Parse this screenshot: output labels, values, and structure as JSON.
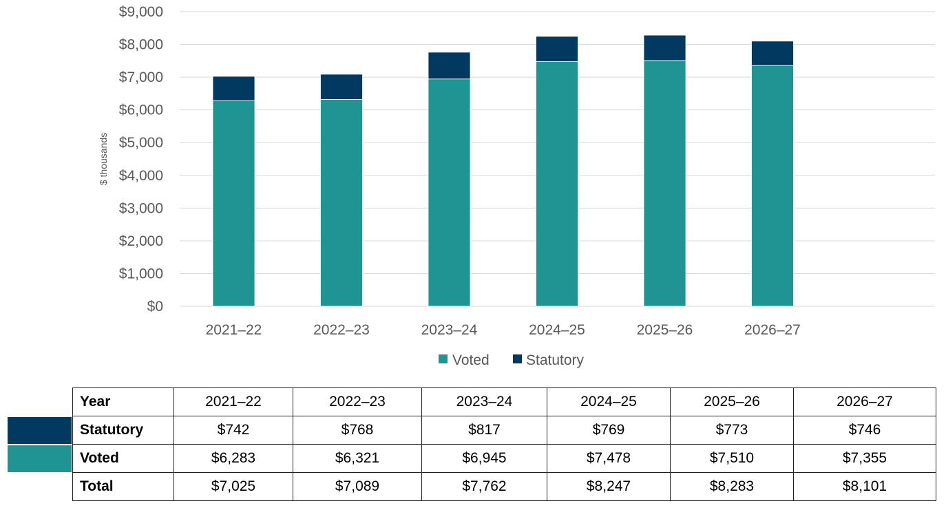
{
  "chart_data": {
    "type": "bar",
    "stacked": true,
    "title": "",
    "xlabel": "",
    "ylabel": "$ thousands",
    "ylim": [
      0,
      9000
    ],
    "y_ticks": [
      0,
      1000,
      2000,
      3000,
      4000,
      5000,
      6000,
      7000,
      8000,
      9000
    ],
    "y_tick_labels": [
      "$0",
      "$1,000",
      "$2,000",
      "$3,000",
      "$4,000",
      "$5,000",
      "$6,000",
      "$7,000",
      "$8,000",
      "$9,000"
    ],
    "categories": [
      "2021–22",
      "2022–23",
      "2023–24",
      "2024–25",
      "2025–26",
      "2026–27"
    ],
    "series": [
      {
        "name": "Voted",
        "values": [
          6283,
          6321,
          6945,
          7478,
          7510,
          7355
        ],
        "color": "#1F9593"
      },
      {
        "name": "Statutory",
        "values": [
          742,
          768,
          817,
          769,
          773,
          746
        ],
        "color": "#003A60"
      }
    ],
    "grid": true,
    "legend": "bottom-center"
  },
  "colors": {
    "grid": "#D9D9D9",
    "tick_text": "#595959"
  },
  "table": {
    "header": {
      "label": "Year",
      "cells": [
        "2021–22",
        "2022–23",
        "2023–24",
        "2024–25",
        "2025–26",
        "2026–27"
      ]
    },
    "rows": [
      {
        "label": "Statutory",
        "cells": [
          "$742",
          "$768",
          "$817",
          "$769",
          "$773",
          "$746"
        ]
      },
      {
        "label": "Voted",
        "cells": [
          "$6,283",
          "$6,321",
          "$6,945",
          "$7,478",
          "$7,510",
          "$7,355"
        ]
      },
      {
        "label": "Total",
        "cells": [
          "$7,025",
          "$7,089",
          "$7,762",
          "$8,247",
          "$8,283",
          "$8,101"
        ]
      }
    ]
  }
}
